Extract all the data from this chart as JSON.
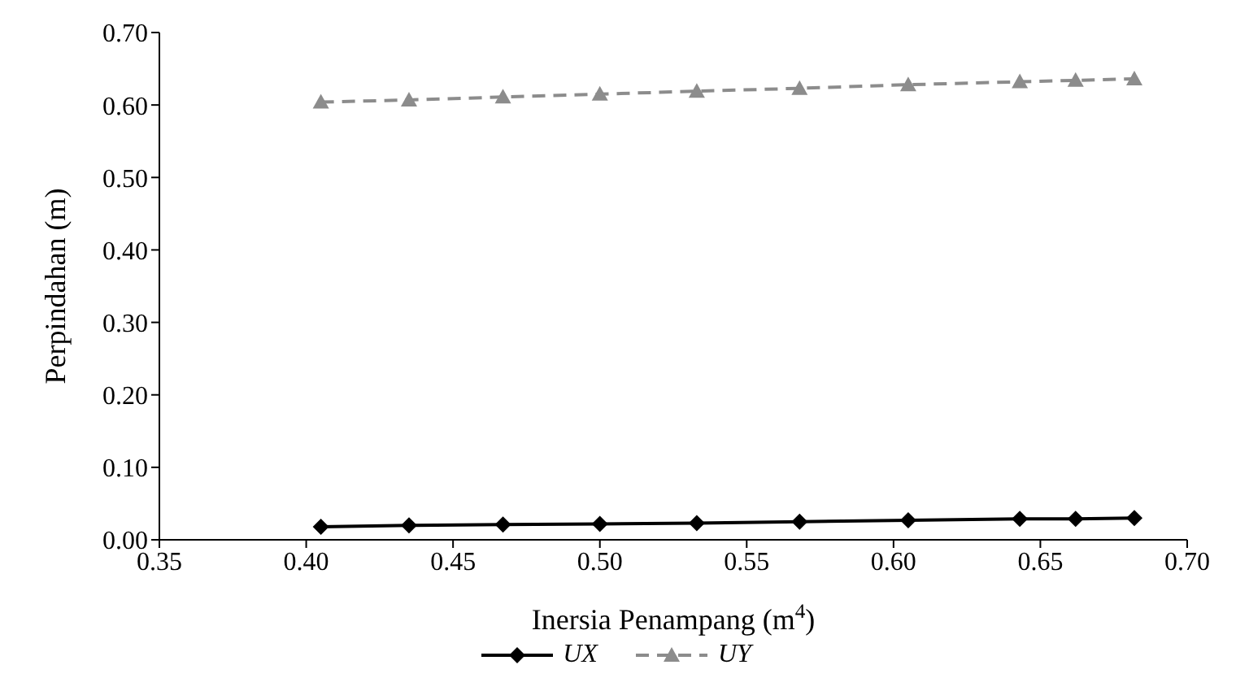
{
  "chart_data": {
    "type": "line",
    "xlabel": "Inersia Penampang (m$^{4}$)",
    "ylabel": "Perpindahan (m)",
    "x": [
      0.405,
      0.435,
      0.467,
      0.5,
      0.533,
      0.568,
      0.605,
      0.643,
      0.662,
      0.682
    ],
    "series": [
      {
        "name": "UX",
        "color": "#000000",
        "marker": "diamond",
        "line_style": "solid",
        "values": [
          0.018,
          0.02,
          0.021,
          0.022,
          0.023,
          0.025,
          0.027,
          0.029,
          0.029,
          0.03
        ]
      },
      {
        "name": "UY",
        "color": "#8c8c8c",
        "marker": "triangle",
        "line_style": "dashed",
        "values": [
          0.604,
          0.607,
          0.611,
          0.615,
          0.619,
          0.623,
          0.628,
          0.632,
          0.634,
          0.636
        ]
      }
    ],
    "xlim": [
      0.35,
      0.7
    ],
    "xticks": [
      {
        "value": 0.35,
        "label": "0.35"
      },
      {
        "value": 0.4,
        "label": "0.40"
      },
      {
        "value": 0.45,
        "label": "0.45"
      },
      {
        "value": 0.5,
        "label": "0.50"
      },
      {
        "value": 0.55,
        "label": "0.55"
      },
      {
        "value": 0.6,
        "label": "0.60"
      },
      {
        "value": 0.65,
        "label": "0.65"
      },
      {
        "value": 0.7,
        "label": "0.70"
      }
    ],
    "ylim": [
      0,
      0.7
    ],
    "yticks": [
      {
        "value": 0,
        "label": "0.00"
      },
      {
        "value": 0.1,
        "label": "0.10"
      },
      {
        "value": 0.2,
        "label": "0.20"
      },
      {
        "value": 0.3,
        "label": "0.30"
      },
      {
        "value": 0.4,
        "label": "0.40"
      },
      {
        "value": 0.5,
        "label": "0.50"
      },
      {
        "value": 0.6,
        "label": "0.60"
      },
      {
        "value": 0.7,
        "label": "0.70"
      }
    ],
    "grid": false,
    "legend": "bottom"
  }
}
